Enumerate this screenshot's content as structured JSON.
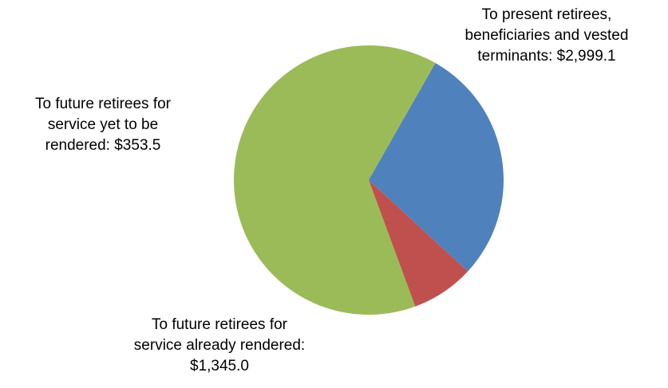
{
  "chart_data": {
    "type": "pie",
    "title": "",
    "slices": [
      {
        "label_lines": [
          "To present retirees,",
          "beneficiaries and vested",
          "terminants: $2,999.1"
        ],
        "value": 2999.1,
        "color": "#9BBB59"
      },
      {
        "label_lines": [
          "To future retirees for",
          "service already rendered:",
          "$1,345.0"
        ],
        "value": 1345.0,
        "color": "#4F81BD"
      },
      {
        "label_lines": [
          "To future retirees for",
          "service yet to be",
          "rendered: $353.5"
        ],
        "value": 353.5,
        "color": "#C0504D"
      }
    ],
    "legend": "none",
    "data_labels": "outside"
  }
}
